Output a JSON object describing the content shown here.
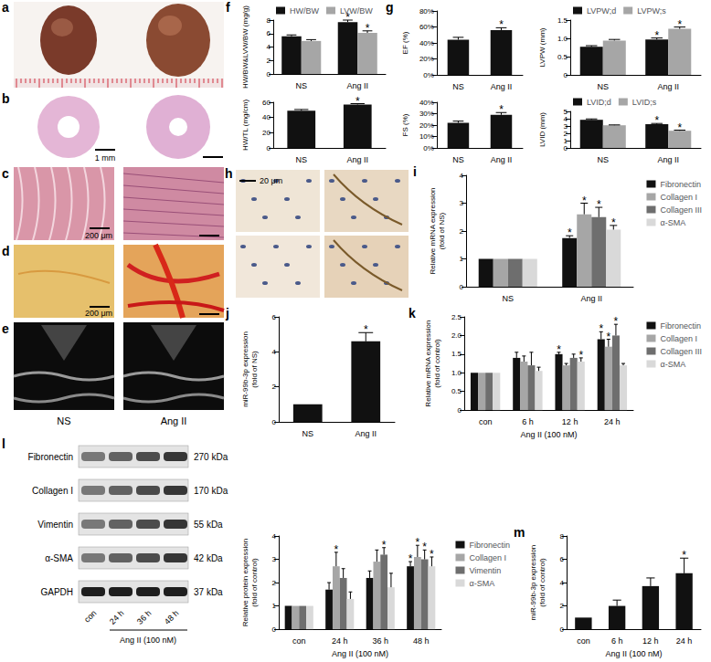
{
  "image_panels": [
    {
      "panel": "a"
    },
    {
      "panel": "b",
      "scale_bar": "1 mm"
    },
    {
      "panel": "c",
      "scale_bar": "200 μm"
    },
    {
      "panel": "d",
      "scale_bar": "200 μm"
    },
    {
      "panel": "e",
      "columns": [
        "NS",
        "Ang II"
      ]
    },
    {
      "panel": "h",
      "scale_bar": "20 μm"
    },
    {
      "panel": "l",
      "rows": [
        {
          "name": "Fibronectin",
          "size": "270 kDa"
        },
        {
          "name": "Collagen I",
          "size": "170 kDa"
        },
        {
          "name": "Vimentin",
          "size": "55 kDa"
        },
        {
          "name": "α-SMA",
          "size": "42 kDa"
        },
        {
          "name": "GAPDH",
          "size": "37 kDa"
        }
      ],
      "lanes": [
        "con",
        "24 h",
        "36 h",
        "48 h"
      ],
      "group": "Ang II (100 nM)"
    }
  ],
  "chart_data": [
    {
      "panel": "f",
      "type": "bar",
      "ylabel": "HW/BW&LVW/BW (mg/g)",
      "categories": [
        "NS",
        "Ang II"
      ],
      "ylim": [
        0,
        8
      ],
      "yticks": [
        0,
        2,
        4,
        6,
        8
      ],
      "grid": false,
      "legend": "top",
      "series": [
        {
          "name": "HW/BW",
          "color": "#111111",
          "values": [
            5.6,
            7.7
          ],
          "errors": [
            0.2,
            0.3
          ],
          "significance": [
            null,
            "*"
          ]
        },
        {
          "name": "LVW/BW",
          "color": "#a6a6a6",
          "values": [
            4.9,
            6.1
          ],
          "errors": [
            0.2,
            0.3
          ],
          "significance": [
            null,
            "*"
          ]
        }
      ]
    },
    {
      "type": "bar",
      "ylabel": "HW/TL (mg/cm)",
      "categories": [
        "NS",
        "Ang II"
      ],
      "ylim": [
        0,
        60
      ],
      "yticks": [
        0,
        20,
        40,
        60
      ],
      "grid": false,
      "color": "#111111",
      "values": [
        49,
        57
      ],
      "errors": [
        1.5,
        1.2
      ],
      "significance": [
        null,
        "*"
      ]
    },
    {
      "panel": "g",
      "type": "bar",
      "ylabel": "EF (%)",
      "categories": [
        "NS",
        "Ang II"
      ],
      "ylim": [
        0,
        80
      ],
      "yticks": [
        {
          "value": 0,
          "label": "0%"
        },
        {
          "value": 20,
          "label": "20%"
        },
        {
          "value": 40,
          "label": "40%"
        },
        {
          "value": 60,
          "label": "60%"
        },
        {
          "value": 80,
          "label": "80%"
        }
      ],
      "grid": false,
      "color": "#111111",
      "values": [
        44,
        56
      ],
      "errors": [
        3,
        3
      ],
      "significance": [
        null,
        "*"
      ]
    },
    {
      "type": "bar",
      "ylabel": "FS (%)",
      "categories": [
        "NS",
        "Ang II"
      ],
      "ylim": [
        0,
        40
      ],
      "yticks": [
        {
          "value": 0,
          "label": "0%"
        },
        {
          "value": 10,
          "label": "10%"
        },
        {
          "value": 20,
          "label": "20%"
        },
        {
          "value": 30,
          "label": "30%"
        },
        {
          "value": 40,
          "label": "40%"
        }
      ],
      "grid": false,
      "color": "#111111",
      "values": [
        22,
        29
      ],
      "errors": [
        1.5,
        2
      ],
      "significance": [
        null,
        "*"
      ]
    },
    {
      "type": "bar",
      "ylabel": "LVPW (mm)",
      "categories": [
        "NS",
        "Ang II"
      ],
      "ylim": [
        0,
        1.5
      ],
      "yticks": [
        0,
        0.5,
        {
          "value": 1,
          "label": "1.0"
        },
        1.5
      ],
      "grid": false,
      "legend": "top",
      "series": [
        {
          "name": "LVPW;d",
          "color": "#111111",
          "values": [
            0.77,
            0.97
          ],
          "errors": [
            0.03,
            0.04
          ],
          "significance": [
            null,
            "*"
          ]
        },
        {
          "name": "LVPW;s",
          "color": "#a6a6a6",
          "values": [
            0.94,
            1.26
          ],
          "errors": [
            0.03,
            0.05
          ],
          "significance": [
            null,
            "*"
          ]
        }
      ]
    },
    {
      "type": "bar",
      "ylabel": "LVID (mm)",
      "categories": [
        "NS",
        "Ang II"
      ],
      "ylim": [
        0,
        5
      ],
      "yticks": [
        0,
        1,
        2,
        3,
        4,
        5
      ],
      "grid": false,
      "legend": "top",
      "series": [
        {
          "name": "LVID;d",
          "color": "#111111",
          "values": [
            3.85,
            3.25
          ],
          "errors": [
            0.12,
            0.1
          ],
          "significance": [
            null,
            "*"
          ]
        },
        {
          "name": "LVID;s",
          "color": "#a6a6a6",
          "values": [
            3.1,
            2.35
          ],
          "errors": [
            0.05,
            0.08
          ],
          "significance": [
            null,
            "*"
          ]
        }
      ]
    },
    {
      "panel": "i",
      "type": "bar",
      "ylabel": "Relative mRNA expression\n(fold of NS)",
      "categories": [
        "NS",
        "Ang II"
      ],
      "ylim": [
        0,
        4
      ],
      "yticks": [
        0,
        1,
        2,
        3,
        4
      ],
      "grid": false,
      "legend": "right",
      "series": [
        {
          "name": "Fibronectin",
          "color": "#111111",
          "values": [
            1,
            1.75
          ],
          "errors": [
            0,
            0.08
          ],
          "significance": [
            null,
            "*"
          ]
        },
        {
          "name": "Collagen I",
          "color": "#a6a6a6",
          "values": [
            1,
            2.6
          ],
          "errors": [
            0,
            0.4
          ],
          "significance": [
            null,
            "*"
          ]
        },
        {
          "name": "Collagen III",
          "color": "#6e6e6e",
          "values": [
            1,
            2.5
          ],
          "errors": [
            0,
            0.35
          ],
          "significance": [
            null,
            "*"
          ]
        },
        {
          "name": "α-SMA",
          "color": "#d9d9d9",
          "values": [
            1,
            2.05
          ],
          "errors": [
            0,
            0.15
          ],
          "significance": [
            null,
            "*"
          ]
        }
      ]
    },
    {
      "panel": "j",
      "type": "bar",
      "ylabel": "miR-99b-3p expression\n(fold of NS)",
      "categories": [
        "NS",
        "Ang II"
      ],
      "ylim": [
        0,
        6
      ],
      "yticks": [
        0,
        2,
        4,
        6
      ],
      "grid": false,
      "color": "#111111",
      "values": [
        1,
        4.6
      ],
      "errors": [
        0,
        0.5
      ],
      "significance": [
        null,
        "*"
      ]
    },
    {
      "panel": "k",
      "type": "bar",
      "ylabel": "Relative mRNA expression\n(fold of control)",
      "xlabel": "Ang II (100 nM)",
      "categories": [
        "con",
        "6 h",
        "12 h",
        "24 h"
      ],
      "ylim": [
        0,
        2.5
      ],
      "yticks": [
        0,
        0.5,
        {
          "value": 1,
          "label": "1.0"
        },
        1.5,
        {
          "value": 2,
          "label": "2.0"
        },
        2.5
      ],
      "grid": false,
      "legend": "right",
      "series": [
        {
          "name": "Fibronectin",
          "color": "#111111",
          "values": [
            1,
            1.4,
            1.5,
            1.9
          ],
          "errors": [
            0,
            0.15,
            0.05,
            0.2
          ],
          "significance": [
            null,
            null,
            "*",
            "*"
          ]
        },
        {
          "name": "Collagen I",
          "color": "#a6a6a6",
          "values": [
            1,
            1.3,
            1.2,
            1.7
          ],
          "errors": [
            0,
            0.15,
            0.05,
            0.2
          ],
          "significance": [
            null,
            null,
            null,
            "*"
          ]
        },
        {
          "name": "Collagen III",
          "color": "#6e6e6e",
          "values": [
            1,
            1.2,
            1.4,
            2.0
          ],
          "errors": [
            0,
            0.35,
            0.1,
            0.3
          ],
          "significance": [
            null,
            null,
            null,
            "*"
          ]
        },
        {
          "name": "α-SMA",
          "color": "#d9d9d9",
          "values": [
            1,
            1.05,
            1.3,
            1.2
          ],
          "errors": [
            0,
            0.1,
            0.1,
            0.05
          ],
          "significance": [
            null,
            null,
            "*",
            null
          ]
        }
      ]
    },
    {
      "type": "bar",
      "ylabel": "Relative protein expression\n(fold of control)",
      "xlabel": "Ang II (100 nM)",
      "categories": [
        "con",
        "24 h",
        "36 h",
        "48 h"
      ],
      "ylim": [
        0,
        4
      ],
      "yticks": [
        0,
        1,
        2,
        3,
        4
      ],
      "grid": false,
      "legend": "right",
      "series": [
        {
          "name": "Fibronectin",
          "color": "#111111",
          "values": [
            1,
            1.7,
            2.2,
            2.7
          ],
          "errors": [
            0,
            0.3,
            0.3,
            0.2
          ],
          "significance": [
            null,
            null,
            null,
            "*"
          ]
        },
        {
          "name": "Collagen I",
          "color": "#a6a6a6",
          "values": [
            1,
            2.7,
            2.9,
            3.1
          ],
          "errors": [
            0,
            0.6,
            0.5,
            0.5
          ],
          "significance": [
            null,
            "*",
            null,
            "*"
          ]
        },
        {
          "name": "Vimentin",
          "color": "#6e6e6e",
          "values": [
            1,
            2.2,
            3.2,
            3.0
          ],
          "errors": [
            0,
            0.4,
            0.3,
            0.4
          ],
          "significance": [
            null,
            null,
            "*",
            "*"
          ]
        },
        {
          "name": "α-SMA",
          "color": "#d9d9d9",
          "values": [
            1,
            1.3,
            1.8,
            2.7
          ],
          "errors": [
            0,
            0.3,
            0.6,
            0.4
          ],
          "significance": [
            null,
            null,
            null,
            "*"
          ]
        }
      ]
    },
    {
      "panel": "m",
      "type": "bar",
      "ylabel": "miR-99b-3p expression\n(fold of control)",
      "xlabel": "Ang II (100 nM)",
      "categories": [
        "con",
        "6 h",
        "12 h",
        "24 h"
      ],
      "ylim": [
        0,
        8
      ],
      "yticks": [
        0,
        2,
        4,
        6,
        8
      ],
      "grid": false,
      "color": "#111111",
      "values": [
        1,
        2.0,
        3.7,
        4.8
      ],
      "errors": [
        0,
        0.5,
        0.7,
        1.3
      ],
      "significance": [
        null,
        null,
        null,
        "*"
      ]
    }
  ]
}
